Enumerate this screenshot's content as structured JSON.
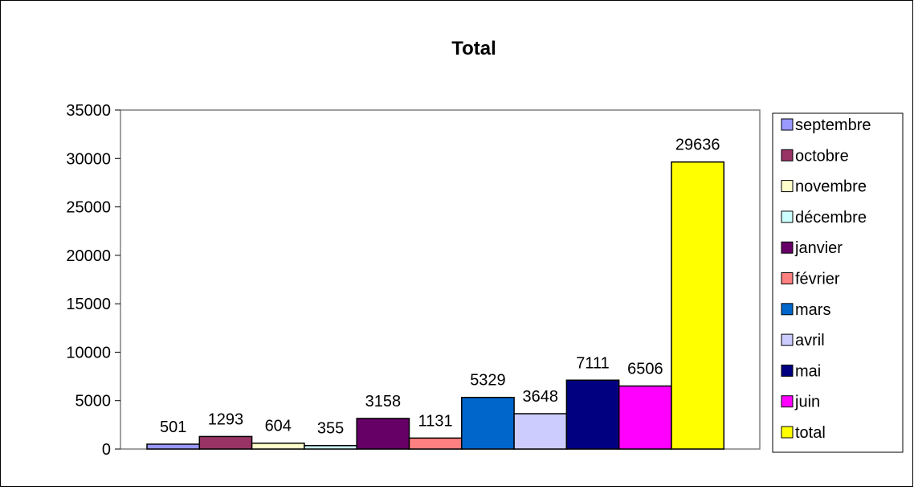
{
  "chart_data": {
    "type": "bar",
    "title": "Total",
    "xlabel": "",
    "ylabel": "",
    "ylim": [
      0,
      35000
    ],
    "yticks": [
      0,
      5000,
      10000,
      15000,
      20000,
      25000,
      30000,
      35000
    ],
    "grid": false,
    "legend_position": "right",
    "data_labels": true,
    "series": [
      {
        "name": "septembre",
        "value": 501,
        "color": "#9999FF"
      },
      {
        "name": "octobre",
        "value": 1293,
        "color": "#993366"
      },
      {
        "name": "novembre",
        "value": 604,
        "color": "#FFFFCC"
      },
      {
        "name": "décembre",
        "value": 355,
        "color": "#CCFFFF"
      },
      {
        "name": "janvier",
        "value": 3158,
        "color": "#660066"
      },
      {
        "name": "février",
        "value": 1131,
        "color": "#FF8080"
      },
      {
        "name": "mars",
        "value": 5329,
        "color": "#0066CC"
      },
      {
        "name": "avril",
        "value": 3648,
        "color": "#CCCCFF"
      },
      {
        "name": "mai",
        "value": 7111,
        "color": "#000080"
      },
      {
        "name": "juin",
        "value": 6506,
        "color": "#FF00FF"
      },
      {
        "name": "total",
        "value": 29636,
        "color": "#FFFF00"
      }
    ]
  }
}
